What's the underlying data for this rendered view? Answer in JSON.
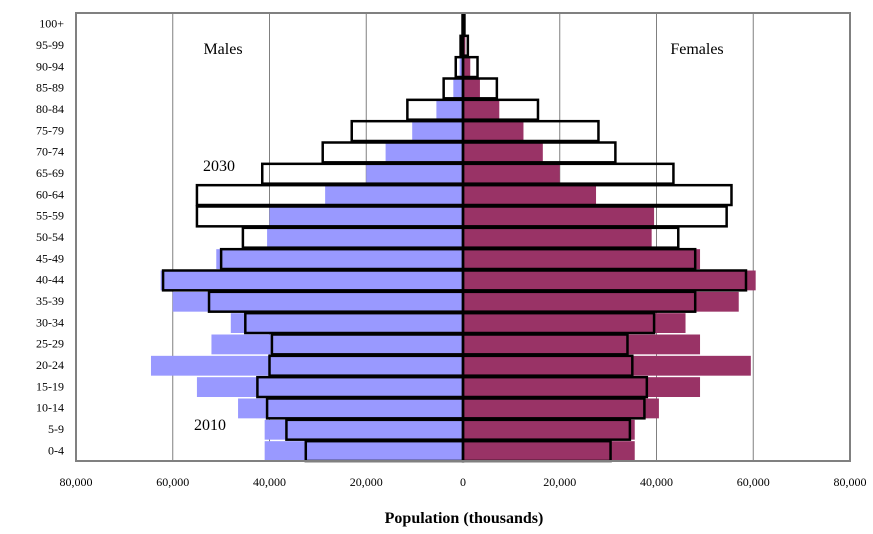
{
  "chart_data": {
    "type": "bar",
    "subtype": "population-pyramid",
    "xlabel": "Population (thousands)",
    "xlim": [
      -80000,
      80000
    ],
    "x_ticks": [
      -80000,
      -60000,
      -40000,
      -20000,
      0,
      20000,
      40000,
      60000,
      80000
    ],
    "x_tick_labels": [
      "80,000",
      "60,000",
      "40,000",
      "20,000",
      "0",
      "20,000",
      "40,000",
      "60,000",
      "80,000"
    ],
    "grid": "vertical",
    "categories": [
      "0-4",
      "5-9",
      "10-14",
      "15-19",
      "20-24",
      "25-29",
      "30-34",
      "35-39",
      "40-44",
      "45-49",
      "50-54",
      "55-59",
      "60-64",
      "65-69",
      "70-74",
      "75-79",
      "80-84",
      "85-89",
      "90-94",
      "95-99",
      "100+"
    ],
    "side_labels": {
      "left": "Males",
      "right": "Females"
    },
    "year_labels": {
      "filled": "2010",
      "outline": "2030"
    },
    "colors": {
      "males_2010": "#9999FF",
      "females_2010": "#993366",
      "outline_2030": "#000000"
    },
    "series": [
      {
        "name": "Males 2010",
        "year": "2010",
        "values": [
          41000,
          41000,
          46500,
          55000,
          64500,
          52000,
          48000,
          60000,
          62500,
          51000,
          40500,
          40000,
          28500,
          20000,
          16000,
          10500,
          5500,
          2000,
          700,
          200,
          50
        ]
      },
      {
        "name": "Females 2010",
        "year": "2010",
        "values": [
          35500,
          35500,
          40500,
          49000,
          59500,
          49000,
          46000,
          57000,
          60500,
          49000,
          39000,
          39500,
          27500,
          20000,
          16500,
          12500,
          7500,
          3500,
          1500,
          500,
          100
        ]
      },
      {
        "name": "Males 2030",
        "year": "2030",
        "values": [
          32500,
          36500,
          40500,
          42500,
          40000,
          39500,
          45000,
          52500,
          62000,
          50000,
          45500,
          55000,
          55000,
          41500,
          29000,
          23000,
          11500,
          4000,
          1500,
          500,
          100
        ]
      },
      {
        "name": "Females 2030",
        "year": "2030",
        "values": [
          30500,
          34500,
          37500,
          38000,
          35000,
          34000,
          39500,
          48000,
          58500,
          48000,
          44500,
          54500,
          55500,
          43500,
          31500,
          28000,
          15500,
          7000,
          3000,
          1000,
          300
        ]
      }
    ]
  }
}
